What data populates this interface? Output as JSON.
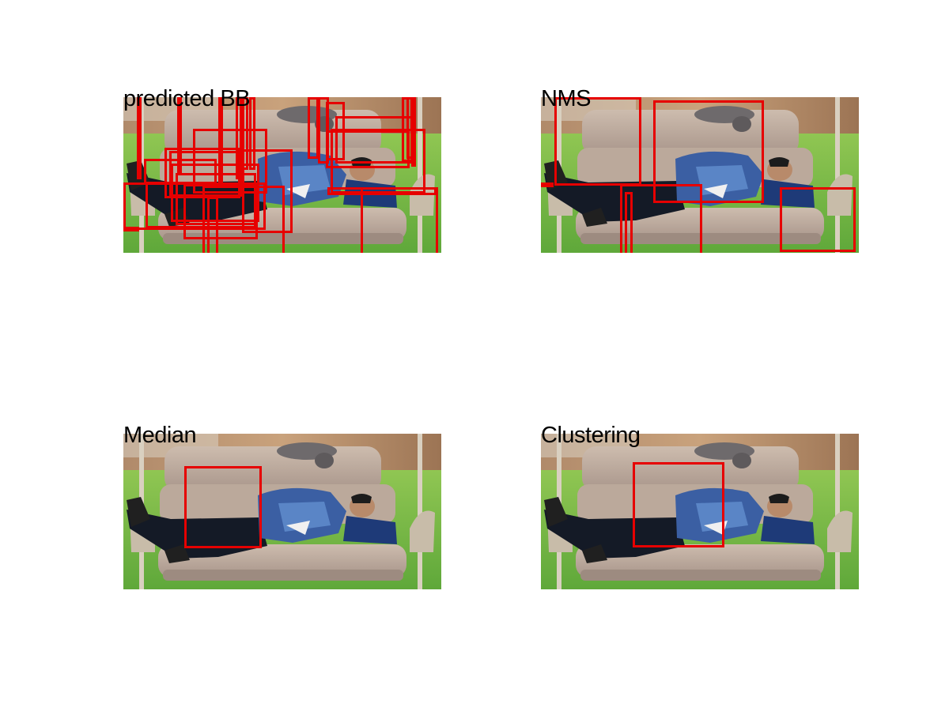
{
  "panels": [
    {
      "title": "predicted BB"
    },
    {
      "title": "NMS"
    },
    {
      "title": "Median"
    },
    {
      "title": "Clustering"
    }
  ],
  "box_color": "#e60000"
}
